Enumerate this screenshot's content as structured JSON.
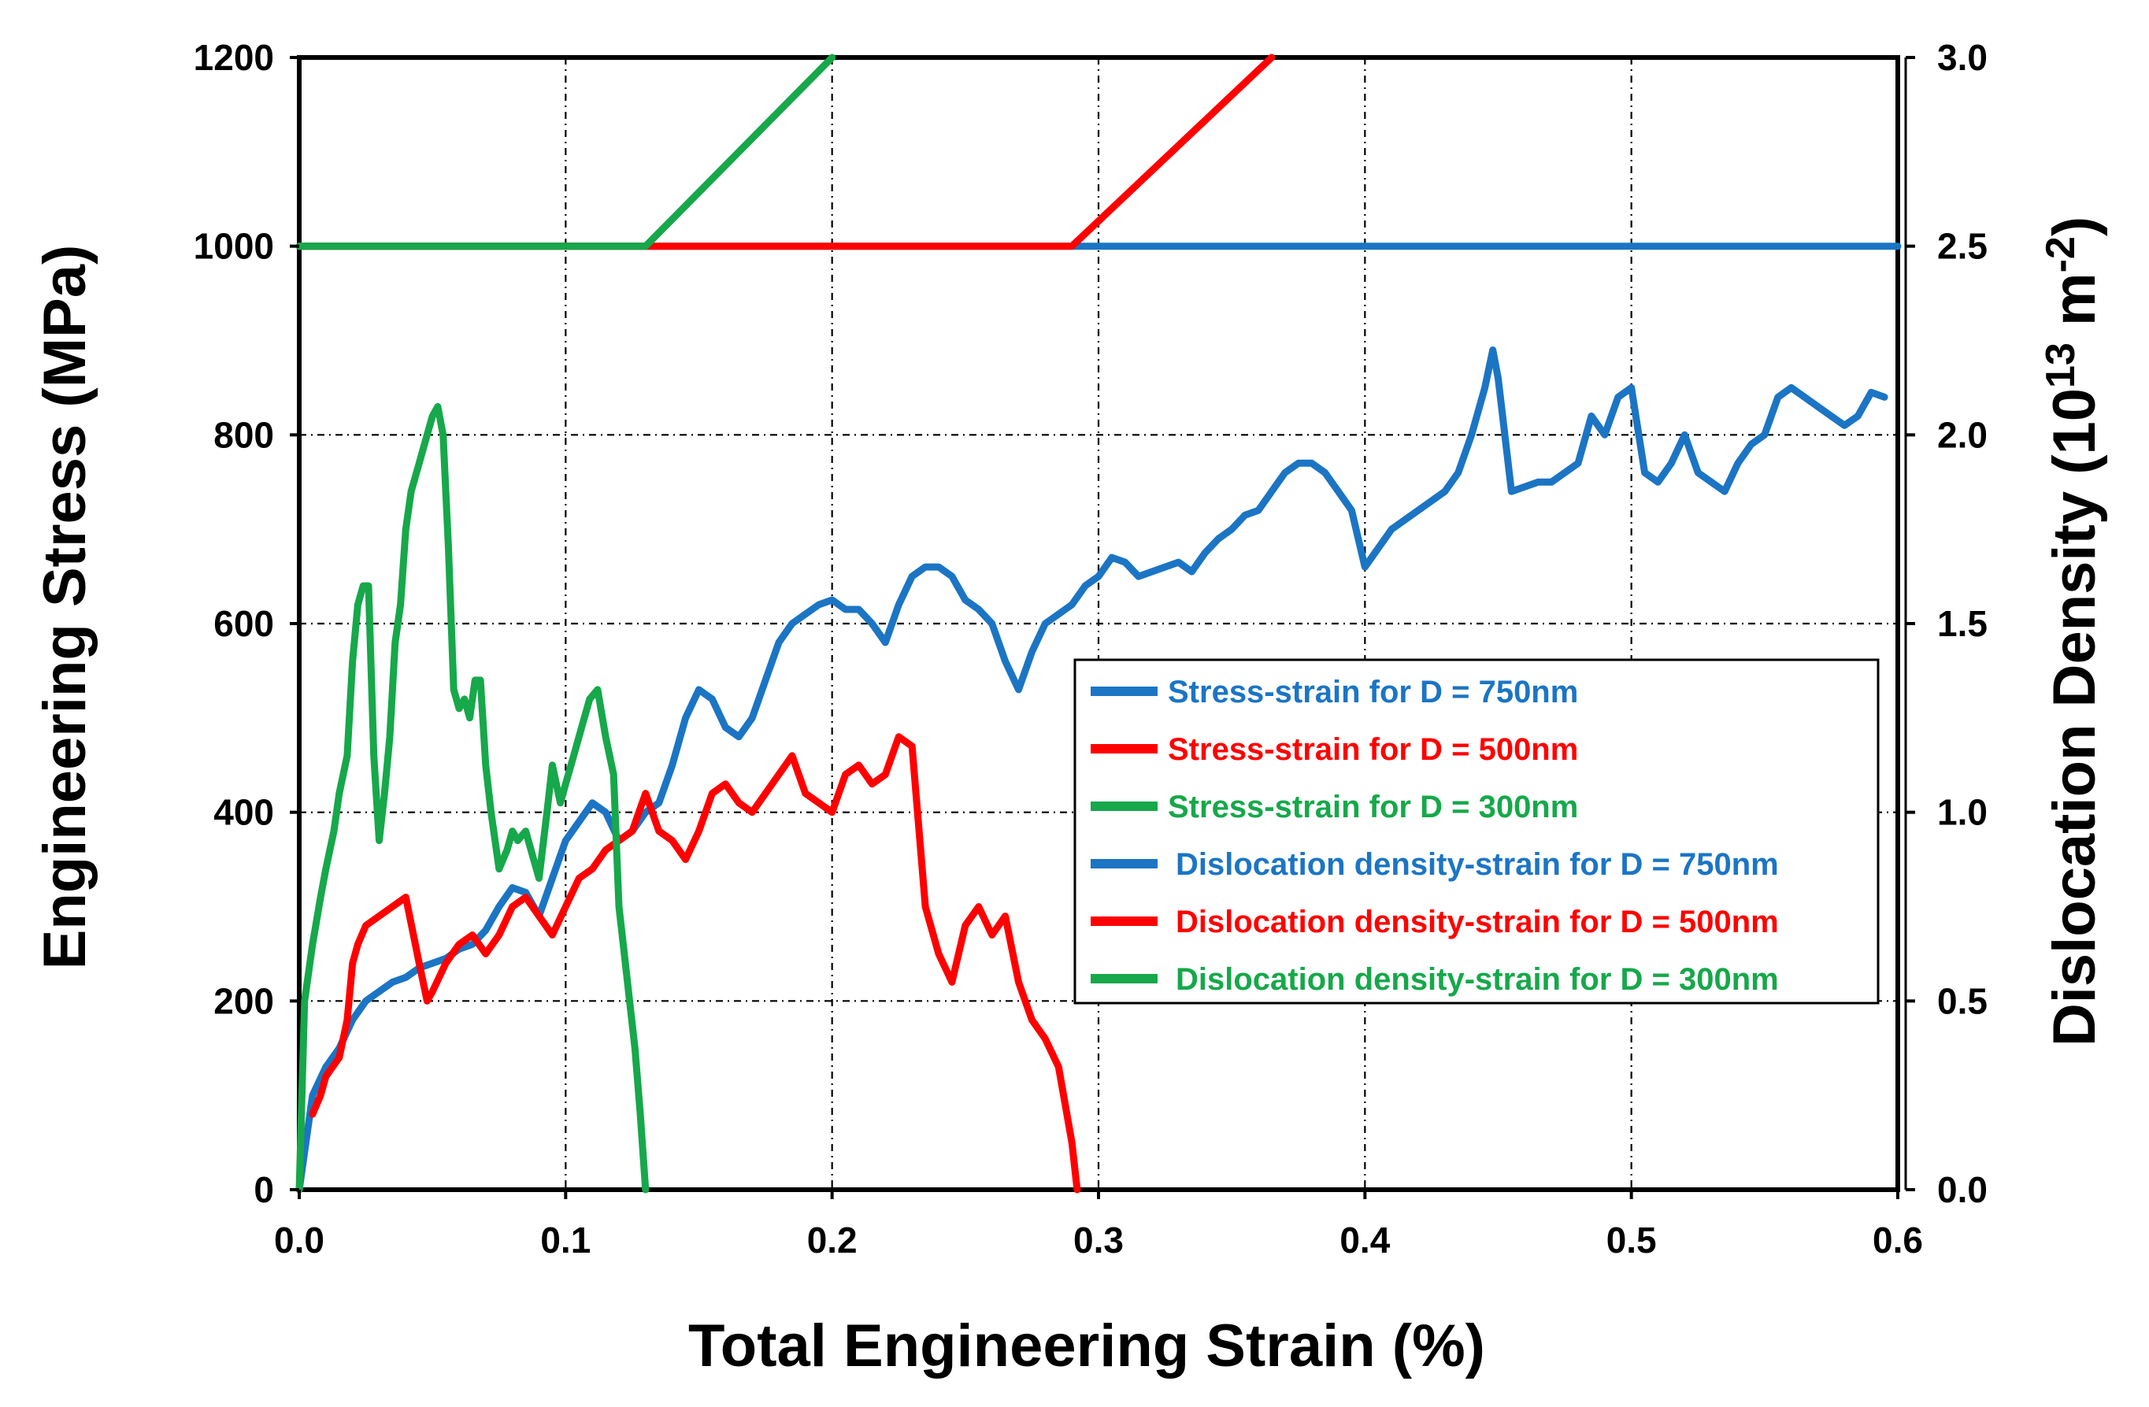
{
  "chart_data": {
    "type": "line",
    "xlabel": "Total Engineering Strain (%)",
    "ylabel": "Engineering Stress (MPa)",
    "y2label_main": "Dislocation Density (10",
    "y2label_exp": "13",
    "y2label_unit": " m",
    "y2label_unit_exp": "-2",
    "y2label_close": ")",
    "xlim": [
      0,
      0.6
    ],
    "ylim": [
      0,
      1200
    ],
    "y2lim": [
      0,
      3.0
    ],
    "xticks": [
      "0.0",
      "0.1",
      "0.2",
      "0.3",
      "0.4",
      "0.5",
      "0.6"
    ],
    "yticks": [
      "0",
      "200",
      "400",
      "600",
      "800",
      "1000",
      "1200"
    ],
    "y2ticks": [
      "0.0",
      "0.5",
      "1.0",
      "1.5",
      "2.0",
      "2.5",
      "3.0"
    ],
    "grid": true,
    "legend_position": "center-right",
    "series": [
      {
        "name": "Stress-strain for D = 750nm",
        "axis": "left",
        "color": "#1B75C4",
        "x": [
          0.0,
          0.005,
          0.01,
          0.015,
          0.02,
          0.025,
          0.03,
          0.035,
          0.04,
          0.045,
          0.05,
          0.055,
          0.06,
          0.065,
          0.07,
          0.075,
          0.08,
          0.085,
          0.09,
          0.095,
          0.1,
          0.105,
          0.11,
          0.115,
          0.12,
          0.125,
          0.13,
          0.135,
          0.14,
          0.145,
          0.15,
          0.155,
          0.16,
          0.165,
          0.17,
          0.175,
          0.18,
          0.185,
          0.19,
          0.195,
          0.2,
          0.205,
          0.21,
          0.215,
          0.22,
          0.225,
          0.23,
          0.235,
          0.24,
          0.245,
          0.25,
          0.255,
          0.26,
          0.265,
          0.27,
          0.275,
          0.28,
          0.285,
          0.29,
          0.295,
          0.3,
          0.305,
          0.31,
          0.315,
          0.32,
          0.325,
          0.33,
          0.335,
          0.34,
          0.345,
          0.35,
          0.355,
          0.36,
          0.365,
          0.37,
          0.375,
          0.38,
          0.385,
          0.39,
          0.395,
          0.4,
          0.405,
          0.41,
          0.415,
          0.42,
          0.425,
          0.43,
          0.435,
          0.44,
          0.445,
          0.448,
          0.45,
          0.455,
          0.46,
          0.465,
          0.47,
          0.475,
          0.48,
          0.485,
          0.49,
          0.495,
          0.5,
          0.505,
          0.51,
          0.515,
          0.52,
          0.525,
          0.53,
          0.535,
          0.54,
          0.545,
          0.55,
          0.555,
          0.56,
          0.565,
          0.57,
          0.575,
          0.58,
          0.585,
          0.59,
          0.595
        ],
        "y": [
          0,
          100,
          130,
          150,
          180,
          200,
          210,
          220,
          225,
          235,
          240,
          245,
          255,
          260,
          275,
          300,
          320,
          315,
          290,
          330,
          370,
          390,
          410,
          400,
          370,
          380,
          400,
          410,
          450,
          500,
          530,
          520,
          490,
          480,
          500,
          540,
          580,
          600,
          610,
          620,
          625,
          615,
          615,
          600,
          580,
          620,
          650,
          660,
          660,
          650,
          625,
          615,
          600,
          560,
          530,
          570,
          600,
          610,
          620,
          640,
          650,
          670,
          665,
          650,
          655,
          660,
          665,
          655,
          675,
          690,
          700,
          715,
          720,
          740,
          760,
          770,
          770,
          760,
          740,
          720,
          660,
          680,
          700,
          710,
          720,
          730,
          740,
          760,
          800,
          850,
          890,
          860,
          740,
          745,
          750,
          750,
          760,
          770,
          820,
          800,
          840,
          850,
          760,
          750,
          770,
          800,
          760,
          750,
          740,
          770,
          790,
          800,
          840,
          850,
          840,
          830,
          820,
          810,
          820,
          845,
          840
        ]
      },
      {
        "name": "Stress-strain for D = 500nm",
        "axis": "left",
        "color": "#FF0000",
        "x": [
          0.005,
          0.008,
          0.01,
          0.015,
          0.018,
          0.02,
          0.022,
          0.025,
          0.03,
          0.035,
          0.04,
          0.045,
          0.048,
          0.05,
          0.055,
          0.06,
          0.065,
          0.07,
          0.075,
          0.08,
          0.085,
          0.09,
          0.095,
          0.1,
          0.105,
          0.11,
          0.115,
          0.12,
          0.125,
          0.13,
          0.135,
          0.14,
          0.145,
          0.15,
          0.155,
          0.16,
          0.165,
          0.17,
          0.175,
          0.18,
          0.185,
          0.19,
          0.195,
          0.2,
          0.205,
          0.21,
          0.215,
          0.22,
          0.225,
          0.23,
          0.235,
          0.24,
          0.245,
          0.25,
          0.255,
          0.26,
          0.265,
          0.27,
          0.275,
          0.28,
          0.285,
          0.29,
          0.292
        ],
        "y": [
          80,
          100,
          120,
          140,
          180,
          240,
          260,
          280,
          290,
          300,
          310,
          240,
          200,
          210,
          240,
          260,
          270,
          250,
          270,
          300,
          310,
          290,
          270,
          300,
          330,
          340,
          360,
          370,
          380,
          420,
          380,
          370,
          350,
          380,
          420,
          430,
          410,
          400,
          420,
          440,
          460,
          420,
          410,
          400,
          440,
          450,
          430,
          440,
          480,
          470,
          300,
          250,
          220,
          280,
          300,
          270,
          290,
          220,
          180,
          160,
          130,
          50,
          0
        ]
      },
      {
        "name": "Stress-strain for D = 300nm",
        "axis": "left",
        "color": "#16A84A",
        "x": [
          0.0,
          0.002,
          0.005,
          0.008,
          0.01,
          0.013,
          0.015,
          0.018,
          0.02,
          0.022,
          0.024,
          0.026,
          0.028,
          0.03,
          0.032,
          0.034,
          0.036,
          0.038,
          0.04,
          0.042,
          0.045,
          0.048,
          0.05,
          0.052,
          0.054,
          0.056,
          0.058,
          0.06,
          0.062,
          0.064,
          0.066,
          0.068,
          0.07,
          0.072,
          0.075,
          0.078,
          0.08,
          0.082,
          0.085,
          0.088,
          0.09,
          0.093,
          0.095,
          0.098,
          0.1,
          0.103,
          0.106,
          0.109,
          0.112,
          0.115,
          0.118,
          0.12,
          0.122,
          0.124,
          0.126,
          0.128,
          0.13
        ],
        "y": [
          0,
          200,
          260,
          310,
          340,
          380,
          420,
          460,
          560,
          620,
          640,
          640,
          460,
          370,
          420,
          480,
          580,
          620,
          700,
          740,
          770,
          800,
          820,
          830,
          800,
          680,
          530,
          510,
          520,
          500,
          540,
          540,
          450,
          400,
          340,
          360,
          380,
          370,
          380,
          350,
          330,
          400,
          450,
          410,
          430,
          460,
          490,
          520,
          530,
          480,
          440,
          300,
          250,
          200,
          150,
          80,
          0
        ]
      },
      {
        "name": "Dislocation density-strain for D = 750nm",
        "axis": "right",
        "color": "#1B75C4",
        "x": [
          0.0,
          0.6
        ],
        "y": [
          2.5,
          2.5
        ]
      },
      {
        "name": "Dislocation density-strain for D = 500nm",
        "axis": "right",
        "color": "#FF0000",
        "x": [
          0.0,
          0.29,
          0.365
        ],
        "y": [
          2.5,
          2.5,
          3.0
        ]
      },
      {
        "name": "Dislocation density-strain for D = 300nm",
        "axis": "right",
        "color": "#16A84A",
        "x": [
          0.0,
          0.13,
          0.2
        ],
        "y": [
          2.5,
          2.5,
          3.0
        ]
      }
    ]
  }
}
